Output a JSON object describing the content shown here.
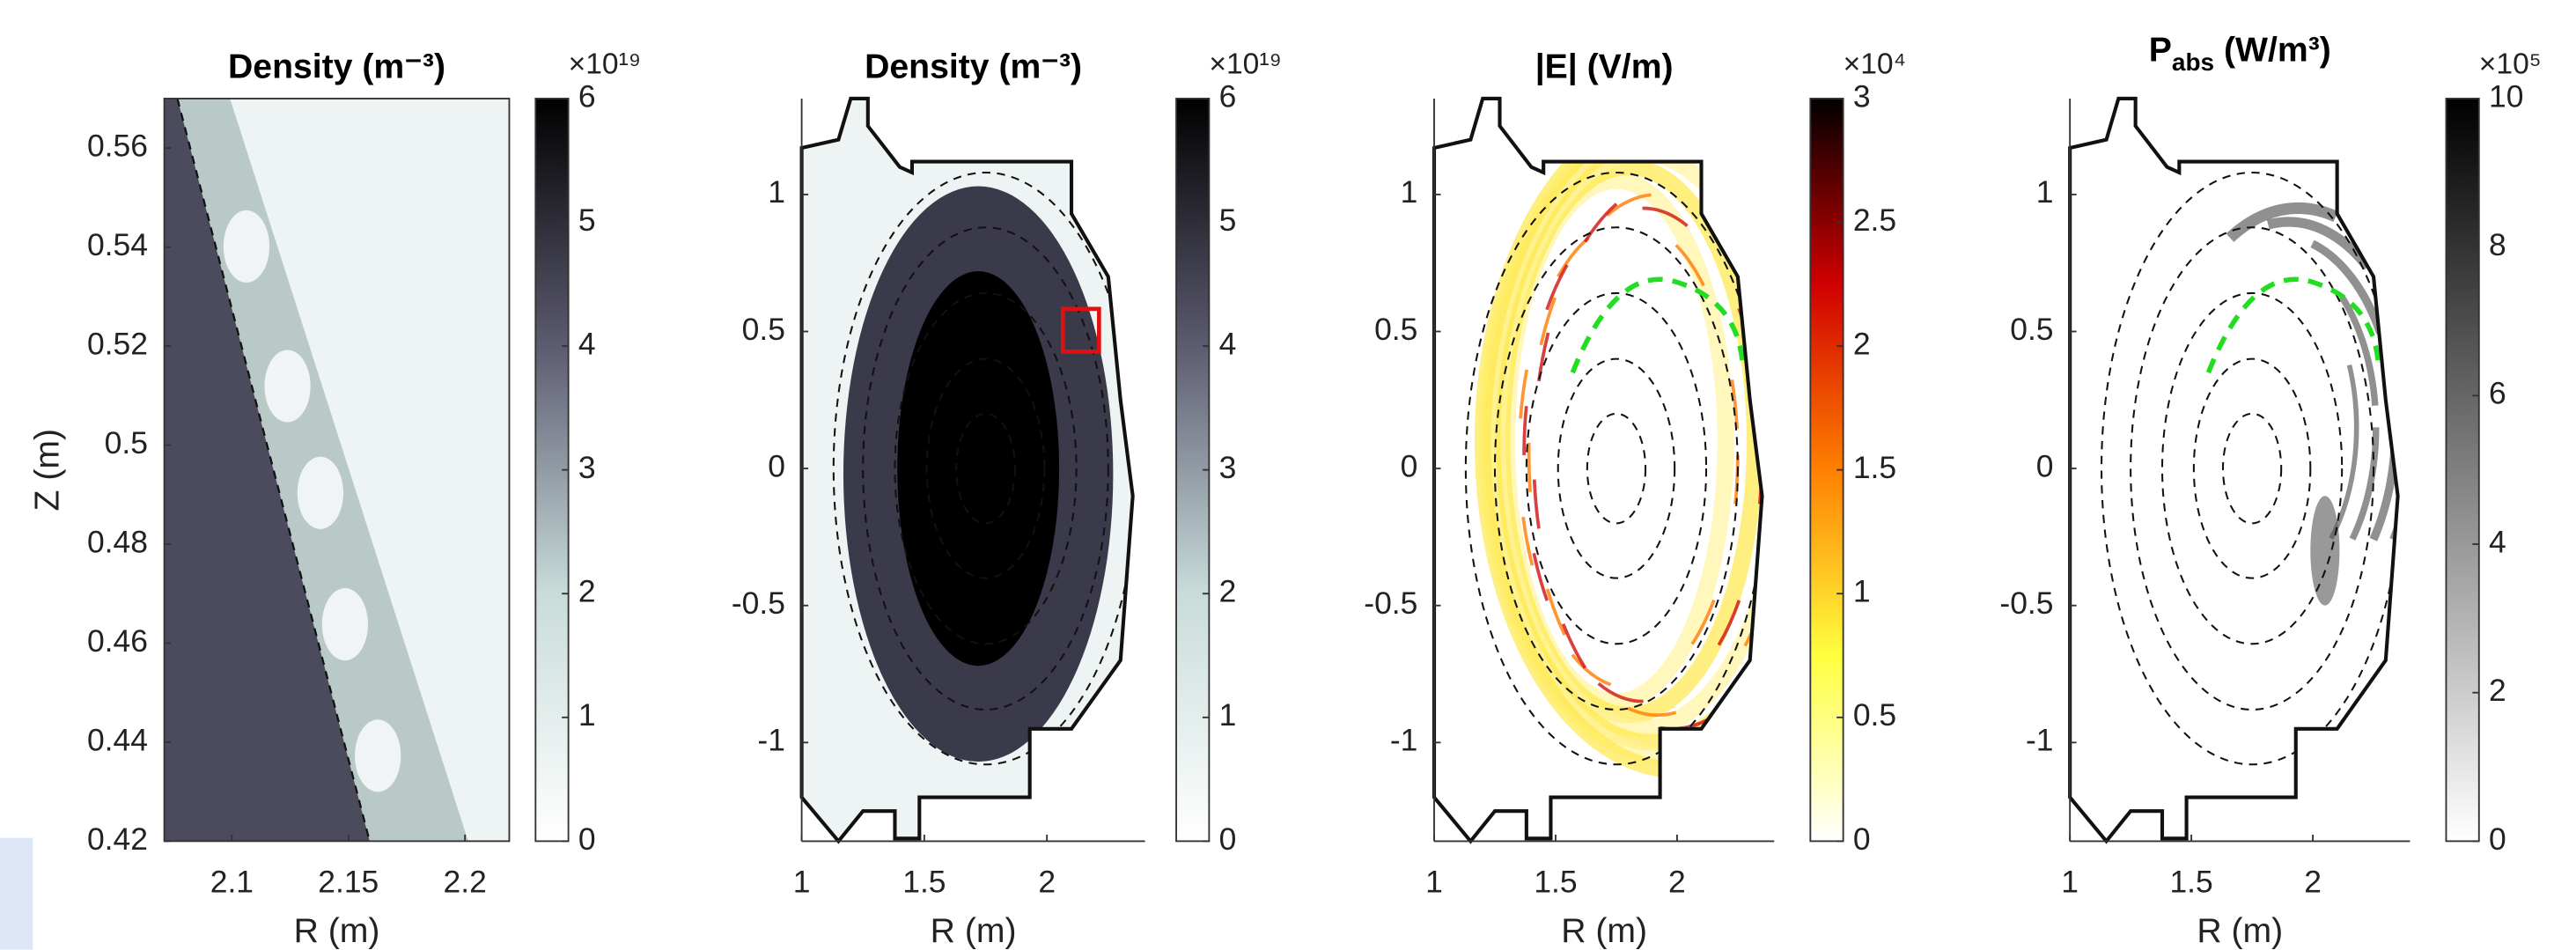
{
  "chart_data": [
    {
      "type": "heatmap",
      "title": "Density (m⁻³)",
      "xlabel": "R (m)",
      "ylabel": "Z (m)",
      "xlim": [
        2.071,
        2.219
      ],
      "ylim": [
        0.42,
        0.57
      ],
      "xticks": [
        2.1,
        2.15,
        2.2
      ],
      "yticks": [
        0.42,
        0.44,
        0.46,
        0.48,
        0.5,
        0.52,
        0.54,
        0.56
      ],
      "colorbar": {
        "lim": [
          0,
          6
        ],
        "ticks": [
          0,
          1,
          2,
          3,
          4,
          5,
          6
        ],
        "multiplier": "×10¹⁹",
        "colormap": [
          "#ffffff",
          "#c8dcda",
          "#5c5b70",
          "#000000"
        ]
      }
    },
    {
      "type": "heatmap",
      "title": "Density (m⁻³)",
      "xlabel": "R (m)",
      "xlim": [
        1,
        2.4
      ],
      "ylim": [
        -1.36,
        1.35
      ],
      "xticks": [
        1,
        1.5,
        2
      ],
      "yticks": [
        -1,
        -0.5,
        0,
        0.5,
        1
      ],
      "colorbar": {
        "lim": [
          0,
          6
        ],
        "ticks": [
          0,
          1,
          2,
          3,
          4,
          5,
          6
        ],
        "multiplier": "×10¹⁹",
        "colormap": [
          "#ffffff",
          "#c8dcda",
          "#5c5b70",
          "#000000"
        ]
      }
    },
    {
      "type": "heatmap",
      "title": "|E| (V/m)",
      "xlabel": "R (m)",
      "xlim": [
        1,
        2.4
      ],
      "ylim": [
        -1.36,
        1.35
      ],
      "xticks": [
        1,
        1.5,
        2
      ],
      "yticks": [
        -1,
        -0.5,
        0,
        0.5,
        1
      ],
      "colorbar": {
        "lim": [
          0,
          3
        ],
        "ticks": [
          0,
          0.5,
          1,
          1.5,
          2,
          2.5,
          3
        ],
        "multiplier": "×10⁴",
        "colormap": [
          "#ffffff",
          "#ffff40",
          "#ff8000",
          "#d00000",
          "#000000"
        ]
      }
    },
    {
      "type": "heatmap",
      "title": {
        "main": "P",
        "sub": "abs",
        "rest": " (W/m³)"
      },
      "xlabel": "R (m)",
      "xlim": [
        1,
        2.4
      ],
      "ylim": [
        -1.36,
        1.35
      ],
      "xticks": [
        1,
        1.5,
        2
      ],
      "yticks": [
        -1,
        -0.5,
        0,
        0.5,
        1
      ],
      "colorbar": {
        "lim": [
          0,
          10
        ],
        "ticks": [
          0,
          2,
          4,
          6,
          8,
          10
        ],
        "multiplier": "×10⁵",
        "colormap": [
          "#ffffff",
          "#000000"
        ]
      }
    }
  ]
}
